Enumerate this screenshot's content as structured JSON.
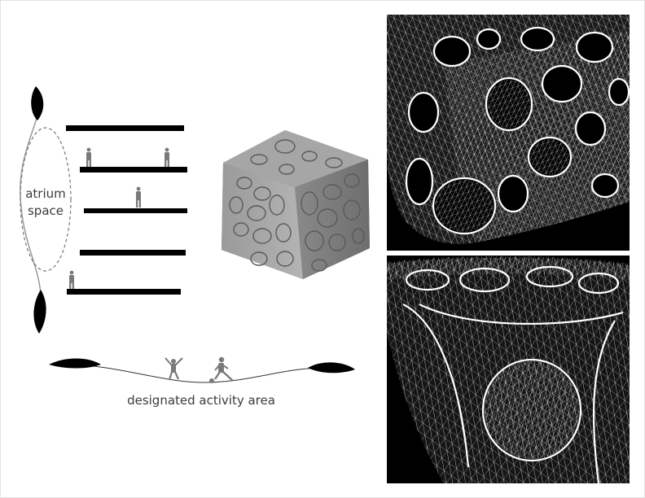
{
  "labels": {
    "atrium_line1": "atrium",
    "atrium_line2": "space",
    "activity": "designated activity area"
  },
  "colors": {
    "background": "#ffffff",
    "slab": "#000000",
    "figure": "#7a7a7a",
    "wire_panel_bg": "#000000",
    "wire_lines": "#ffffff",
    "cube": "#8e8e8e"
  },
  "icons": {
    "leaf": "leaf-shape",
    "person": "person-silhouette"
  }
}
